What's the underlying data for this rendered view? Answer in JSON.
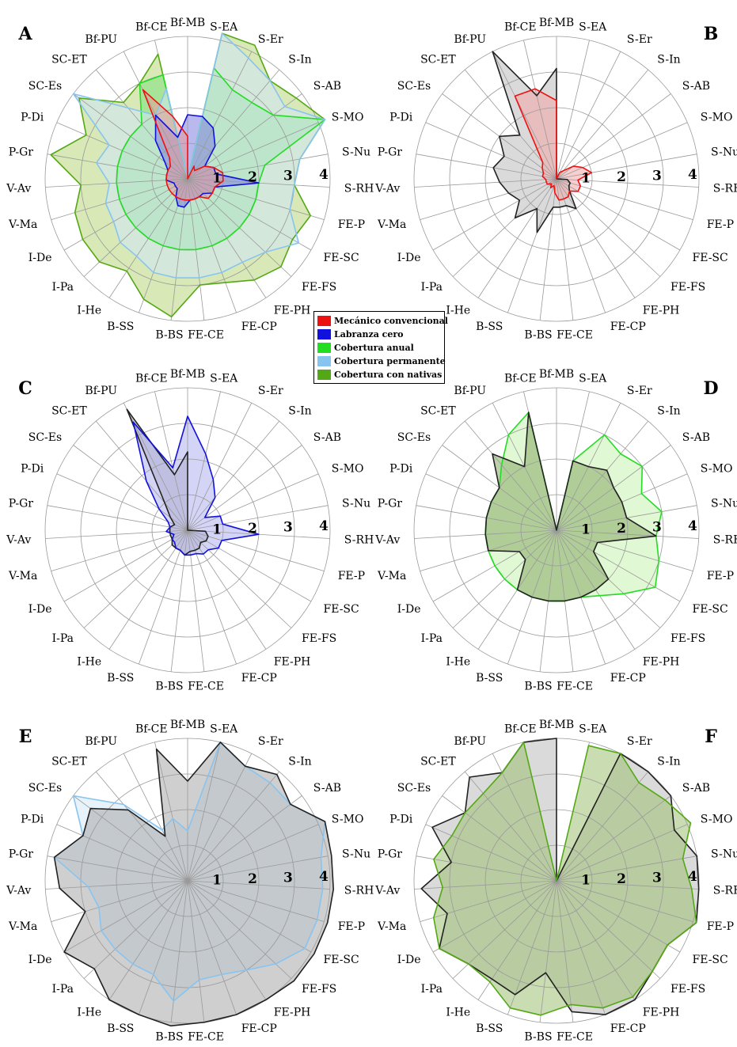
{
  "axes": [
    "Bf-MB",
    "S-EA",
    "S-Er",
    "S-In",
    "S-AB",
    "S-MO",
    "S-Nu",
    "S-RH",
    "FE-P",
    "FE-SC",
    "FE-FS",
    "FE-PH",
    "FE-CP",
    "FE-CE",
    "B-BS",
    "B-SS",
    "I-He",
    "I-Pa",
    "I-De",
    "V-Ma",
    "V-Av",
    "P-Gr",
    "P-Di",
    "SC-Es",
    "SC-ET",
    "Bf-PU",
    "Bf-CE"
  ],
  "legend": [
    {
      "label": "Mecánico convencional",
      "color": "#ee1111"
    },
    {
      "label": "Labranza cero",
      "color": "#1111dd"
    },
    {
      "label": "Cobertura anual",
      "color": "#22dd22"
    },
    {
      "label": "Cobertura permanente",
      "color": "#88c4f0"
    },
    {
      "label": "Cobertura con nativas",
      "color": "#55a815"
    }
  ],
  "chart_data": [
    {
      "type": "radar",
      "panel": "A",
      "rlim": [
        0,
        4
      ],
      "ring_labels": [
        "1",
        "2",
        "3",
        "4"
      ],
      "series": [
        {
          "color": "#55a815",
          "fill": "#b8d67a",
          "values": [
            0,
            4.2,
            4.2,
            3.6,
            3.8,
            4.2,
            3.2,
            3.0,
            3.6,
            3.4,
            3.6,
            3.4,
            3.1,
            3.0,
            3.9,
            3.6,
            3.1,
            3.4,
            3.4,
            3.3,
            3.0,
            3.9,
            3.1,
            3.8,
            2.8,
            3.0,
            3.6
          ]
        },
        {
          "color": "#22dd22",
          "fill": "#7fe07f",
          "values": [
            0,
            3.2,
            2.8,
            2.8,
            3.0,
            4.2,
            2.2,
            2.0,
            2.0,
            2.0,
            2.0,
            2.0,
            2.0,
            2.0,
            2.0,
            2.0,
            2.0,
            2.0,
            2.0,
            2.0,
            2.0,
            2.0,
            2.0,
            2.0,
            2.0,
            3.0,
            3.0
          ]
        },
        {
          "color": "#88c4f0",
          "fill": "#cfe6f7",
          "values": [
            0,
            4.2,
            3.8,
            3.6,
            3.4,
            4.2,
            3.2,
            3.0,
            3.0,
            3.6,
            3.0,
            2.8,
            2.8,
            2.8,
            2.8,
            2.8,
            2.6,
            2.6,
            2.4,
            2.4,
            2.2,
            2.6,
            2.4,
            4.0,
            2.6,
            2.0,
            2.6
          ]
        },
        {
          "color": "#1111dd",
          "fill": "#8080e0",
          "values": [
            1.8,
            1.8,
            1.6,
            1.2,
            0.6,
            0.8,
            0.8,
            2.0,
            0.8,
            0.8,
            0.6,
            0.6,
            0.6,
            0.6,
            0.8,
            0.8,
            0.6,
            0.4,
            0.4,
            0.4,
            0.6,
            0.6,
            0.6,
            0.8,
            1.4,
            2.0,
            1.2
          ]
        },
        {
          "color": "#ee1111",
          "fill": "#e89a9a",
          "values": [
            1.2,
            0,
            0.4,
            0.3,
            0.6,
            0.8,
            1.0,
            1.0,
            0.8,
            0.8,
            0.8,
            0.6,
            0.6,
            0.6,
            0.6,
            0.6,
            0.6,
            0.6,
            0.6,
            0.6,
            0.6,
            0.6,
            0.6,
            0.6,
            0.8,
            2.8,
            1.8
          ]
        }
      ]
    },
    {
      "type": "radar",
      "panel": "B",
      "rlim": [
        0,
        4
      ],
      "ring_labels": [
        "1",
        "2",
        "3",
        "4"
      ],
      "series": [
        {
          "color": "#222222",
          "fill": "#bbbbbb",
          "values": [
            3.1,
            0,
            0,
            0,
            0,
            0,
            0,
            0.3,
            0.4,
            0.4,
            0.5,
            1.0,
            0.8,
            0.8,
            0.8,
            1.6,
            1.0,
            1.6,
            1.2,
            1.4,
            1.6,
            1.8,
            1.6,
            2.0,
            1.6,
            4.0,
            2.4
          ]
        },
        {
          "color": "#ee1111",
          "fill": "#f3a6a6",
          "values": [
            2.2,
            0,
            0.2,
            0.3,
            0.6,
            0.8,
            1.0,
            0.6,
            0.7,
            0.7,
            0.5,
            0.6,
            0.6,
            0.6,
            0.4,
            0.2,
            0.3,
            0.2,
            0.3,
            0.3,
            0.3,
            0.4,
            0.4,
            0.5,
            0.6,
            2.6,
            2.6
          ]
        }
      ]
    },
    {
      "type": "radar",
      "panel": "C",
      "rlim": [
        0,
        4
      ],
      "ring_labels": [
        "1",
        "2",
        "3",
        "4"
      ],
      "series": [
        {
          "color": "#222222",
          "fill": "#aaaaaa",
          "values": [
            2.2,
            0,
            0,
            0,
            0,
            0,
            0,
            0.5,
            0.6,
            0.6,
            0.5,
            0.6,
            0.6,
            0.6,
            0.7,
            0.6,
            0.6,
            0.6,
            0.5,
            0.5,
            0.5,
            0.5,
            0.4,
            0.6,
            1.0,
            3.8,
            1.6
          ]
        },
        {
          "color": "#1111dd",
          "fill": "#b0b0f0",
          "values": [
            3.2,
            2.2,
            1.6,
            1.2,
            0.6,
            1.0,
            1.0,
            2.0,
            1.0,
            1.0,
            0.8,
            0.8,
            0.7,
            0.7,
            0.7,
            0.6,
            0.6,
            0.5,
            0.5,
            0.4,
            0.6,
            0.5,
            0.6,
            1.0,
            1.8,
            3.4,
            1.8
          ]
        }
      ]
    },
    {
      "type": "radar",
      "panel": "D",
      "rlim": [
        0,
        4
      ],
      "ring_labels": [
        "1",
        "2",
        "3",
        "4"
      ],
      "series": [
        {
          "color": "#22dd22",
          "fill": "#c8f2b0",
          "values": [
            0,
            2.0,
            3.0,
            2.8,
            3.0,
            2.6,
            3.0,
            2.8,
            3.0,
            3.2,
            2.6,
            2.2,
            2.0,
            2.0,
            2.0,
            2.0,
            2.0,
            2.0,
            2.0,
            2.0,
            2.0,
            2.0,
            2.0,
            2.0,
            2.4,
            3.0,
            3.4
          ]
        },
        {
          "color": "#222222",
          "fill": "#88aa66",
          "values": [
            0,
            2.0,
            2.0,
            2.2,
            2.0,
            2.0,
            2.0,
            2.8,
            1.2,
            1.2,
            2.0,
            2.0,
            2.0,
            2.0,
            2.0,
            2.0,
            2.0,
            1.2,
            1.2,
            2.0,
            2.0,
            2.0,
            2.0,
            2.0,
            2.8,
            2.0,
            3.4
          ]
        }
      ]
    },
    {
      "type": "radar",
      "panel": "E",
      "rlim": [
        0,
        4
      ],
      "ring_labels": [
        "1",
        "2",
        "3",
        "4"
      ],
      "series": [
        {
          "color": "#88c4f0",
          "fill": "#d4e8f7",
          "values": [
            1.4,
            4.0,
            3.6,
            3.6,
            3.6,
            4.2,
            3.8,
            3.8,
            3.8,
            3.8,
            3.4,
            3.0,
            2.8,
            2.8,
            3.4,
            2.8,
            2.8,
            2.8,
            2.8,
            2.6,
            2.8,
            3.8,
            3.2,
            4.0,
            2.8,
            1.6,
            1.8
          ]
        },
        {
          "color": "#222222",
          "fill": "#a8a8a8",
          "values": [
            2.8,
            4.0,
            3.6,
            3.9,
            3.6,
            4.2,
            4.1,
            4.1,
            4.1,
            4.1,
            4.1,
            4.0,
            4.0,
            4.0,
            4.1,
            4.0,
            4.0,
            3.6,
            4.0,
            3.0,
            3.6,
            3.8,
            3.2,
            3.4,
            2.6,
            1.4,
            3.8
          ]
        }
      ]
    },
    {
      "type": "radar",
      "panel": "F",
      "rlim": [
        0,
        4
      ],
      "ring_labels": [
        "1",
        "2",
        "3",
        "4"
      ],
      "series": [
        {
          "color": "#222222",
          "fill": "#bbbbbb",
          "values": [
            4.0,
            0,
            4.0,
            4.0,
            4.0,
            3.6,
            4.0,
            4.0,
            4.1,
            3.6,
            3.7,
            4.0,
            4.0,
            3.7,
            2.6,
            3.4,
            3.3,
            3.4,
            3.8,
            3.2,
            3.8,
            3.0,
            3.8,
            3.2,
            3.8,
            3.4,
            4.0
          ]
        },
        {
          "color": "#55a815",
          "fill": "#9fbf72",
          "values": [
            0,
            3.9,
            4.0,
            3.6,
            3.8,
            4.1,
            3.6,
            3.8,
            4.1,
            3.6,
            3.7,
            3.9,
            3.8,
            3.5,
            3.8,
            3.8,
            3.4,
            3.4,
            3.8,
            3.6,
            3.2,
            3.5,
            3.2,
            3.2,
            3.2,
            3.4,
            4.0
          ]
        }
      ]
    }
  ]
}
